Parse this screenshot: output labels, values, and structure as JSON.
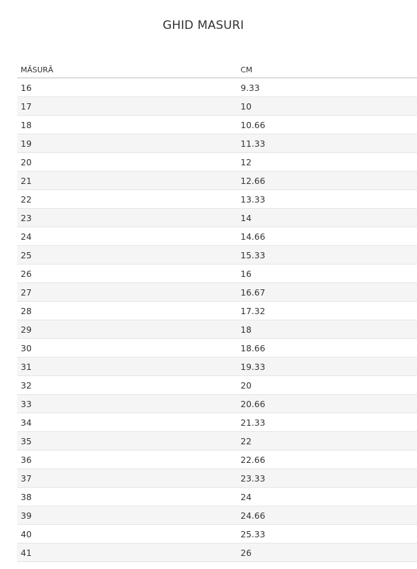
{
  "title": "GHID MASURI",
  "table": {
    "headers": [
      "MĂSURĂ",
      "CM"
    ],
    "rows": [
      [
        "16",
        "9.33"
      ],
      [
        "17",
        "10"
      ],
      [
        "18",
        "10.66"
      ],
      [
        "19",
        "11.33"
      ],
      [
        "20",
        "12"
      ],
      [
        "21",
        "12.66"
      ],
      [
        "22",
        "13.33"
      ],
      [
        "23",
        "14"
      ],
      [
        "24",
        "14.66"
      ],
      [
        "25",
        "15.33"
      ],
      [
        "26",
        "16"
      ],
      [
        "27",
        "16.67"
      ],
      [
        "28",
        "17.32"
      ],
      [
        "29",
        "18"
      ],
      [
        "30",
        "18.66"
      ],
      [
        "31",
        "19.33"
      ],
      [
        "32",
        "20"
      ],
      [
        "33",
        "20.66"
      ],
      [
        "34",
        "21.33"
      ],
      [
        "35",
        "22"
      ],
      [
        "36",
        "22.66"
      ],
      [
        "37",
        "23.33"
      ],
      [
        "38",
        "24"
      ],
      [
        "39",
        "24.66"
      ],
      [
        "40",
        "25.33"
      ],
      [
        "41",
        "26"
      ]
    ]
  },
  "colors": {
    "stripe": "#f5f5f5",
    "text": "#333333",
    "border": "#dddddd"
  }
}
